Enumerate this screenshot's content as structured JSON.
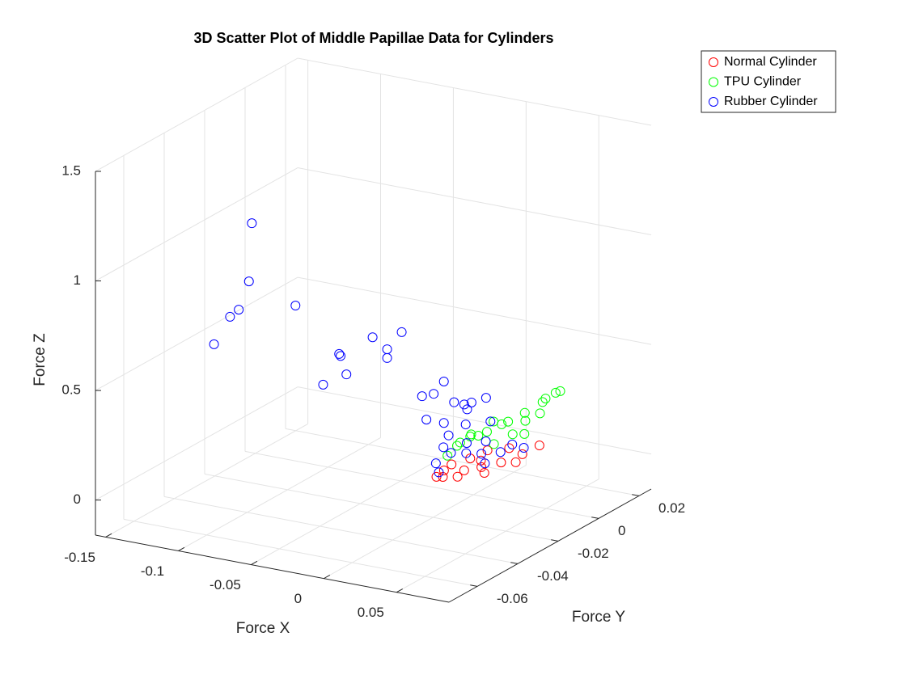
{
  "chart_data": {
    "type": "scatter3d",
    "title": "3D Scatter Plot of Middle Papillae Data for Cylinders",
    "xlabel": "Force X",
    "ylabel": "Force Y",
    "zlabel": "Force Z",
    "xlim": [
      -0.157,
      0.086
    ],
    "ylim": [
      -0.074,
      0.026
    ],
    "zlim": [
      -0.16,
      1.5
    ],
    "xticks": [
      -0.15,
      -0.1,
      -0.05,
      0,
      0.05
    ],
    "yticks": [
      -0.06,
      -0.04,
      -0.02,
      0,
      0.02
    ],
    "zticks": [
      0,
      0.5,
      1,
      1.5
    ],
    "grid": true,
    "legend": "northeastoutside",
    "series": [
      {
        "name": "Normal Cylinder",
        "color": "#ff0000",
        "x": [
          0.0568,
          0.0617,
          0.0666,
          0.069,
          0.0739,
          0.052,
          0.0641,
          0.0714,
          0.0593,
          0.0763,
          0.0666,
          0.0617,
          0.0544,
          0.0787,
          0.069,
          0.0496
        ],
        "y": [
          -0.056,
          -0.049,
          -0.044,
          -0.036,
          -0.029,
          -0.052,
          -0.054,
          -0.046,
          -0.039,
          -0.034,
          -0.041,
          -0.046,
          -0.05,
          -0.024,
          -0.032,
          -0.054
        ],
        "z": [
          0.282,
          0.282,
          0.277,
          0.26,
          0.268,
          0.285,
          0.282,
          0.267,
          0.272,
          0.26,
          0.338,
          0.321,
          0.305,
          0.288,
          0.305,
          0.263
        ]
      },
      {
        "name": "TPU Cylinder",
        "color": "#00ff00",
        "x": [
          0.0568,
          0.0617,
          0.0666,
          0.0714,
          0.0739,
          0.0763,
          0.069,
          0.052,
          0.0593,
          0.0641,
          0.069,
          0.0544,
          0.0617,
          0.0714,
          0.0666,
          0.0763,
          0.0787,
          0.0568,
          0.0641,
          0.0739
        ],
        "y": [
          -0.049,
          -0.042,
          -0.034,
          -0.026,
          -0.019,
          -0.012,
          -0.014,
          -0.044,
          -0.036,
          -0.029,
          -0.024,
          -0.052,
          -0.046,
          -0.032,
          -0.038,
          -0.022,
          -0.016,
          -0.042,
          -0.036,
          -0.028
        ],
        "z": [
          0.388,
          0.404,
          0.421,
          0.438,
          0.454,
          0.471,
          0.438,
          0.371,
          0.388,
          0.404,
          0.388,
          0.355,
          0.421,
          0.371,
          0.454,
          0.421,
          0.487,
          0.404,
          0.338,
          0.355
        ]
      },
      {
        "name": "Rubber Cylinder",
        "color": "#0000ff",
        "x": [
          0.052,
          0.0568,
          0.0617,
          0.0666,
          0.0714,
          0.0739,
          0.0593,
          0.0544,
          0.0641,
          0.069,
          0.0763,
          0.0496,
          0.0617,
          0.0568,
          -0.119,
          -0.121,
          -0.128,
          -0.134,
          -0.145,
          -0.089,
          -0.059,
          -0.058,
          -0.054,
          -0.07,
          -0.036,
          -0.016,
          -0.026,
          -0.026,
          -0.002,
          0.013,
          0.006,
          0.001,
          0.013,
          0.02,
          0.032,
          0.042,
          0.028,
          0.029,
          0.027
        ],
        "y": [
          -0.056,
          -0.052,
          -0.048,
          -0.044,
          -0.038,
          -0.034,
          -0.046,
          -0.054,
          -0.04,
          -0.044,
          -0.03,
          -0.048,
          -0.036,
          -0.058,
          -0.024,
          -0.024,
          -0.024,
          -0.024,
          -0.024,
          -0.024,
          -0.024,
          -0.024,
          -0.024,
          -0.024,
          -0.024,
          -0.024,
          -0.024,
          -0.024,
          -0.024,
          -0.024,
          -0.024,
          -0.024,
          -0.024,
          -0.024,
          -0.024,
          -0.024,
          -0.024,
          -0.024,
          -0.024
        ],
        "z": [
          0.338,
          0.371,
          0.355,
          0.338,
          0.321,
          0.338,
          0.388,
          0.404,
          0.371,
          0.297,
          0.305,
          0.421,
          0.438,
          0.313,
          1.053,
          0.785,
          0.647,
          0.607,
          0.468,
          0.715,
          0.532,
          0.524,
          0.445,
          0.378,
          0.637,
          0.686,
          0.595,
          0.555,
          0.411,
          0.497,
          0.432,
          0.308,
          0.308,
          0.411,
          0.425,
          0.459,
          0.32,
          0.39,
          0.41
        ]
      }
    ]
  }
}
